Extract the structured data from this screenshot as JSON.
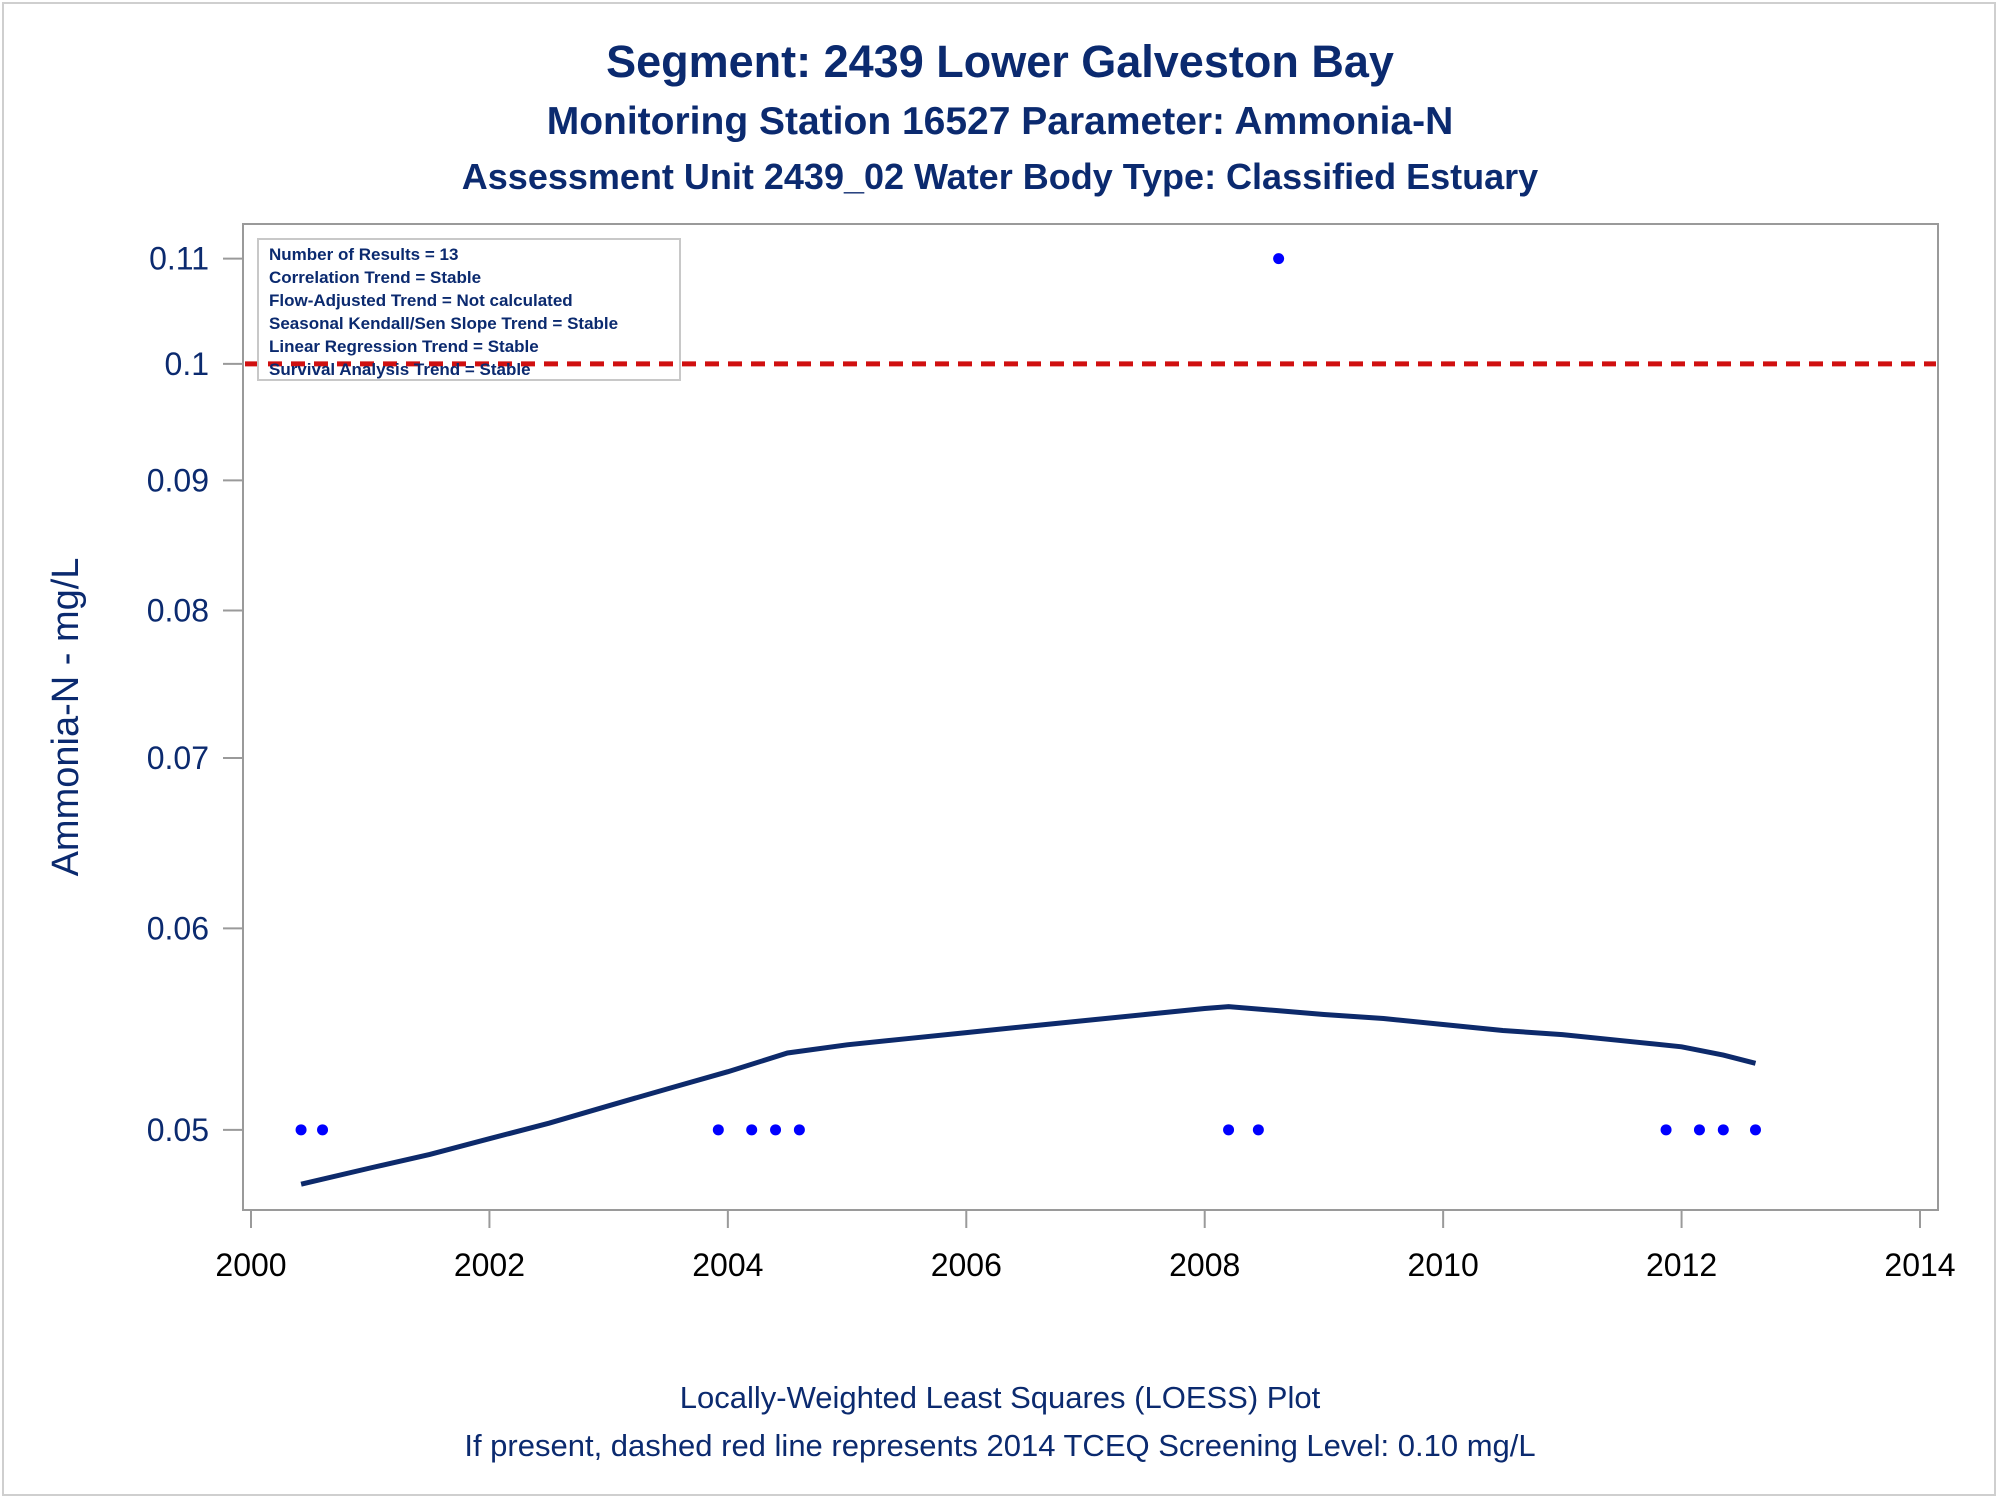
{
  "titles": {
    "line1": "Segment: 2439  Lower Galveston Bay",
    "line2": "Monitoring Station 16527 Parameter: Ammonia-N",
    "line3": "Assessment Unit 2439_02   Water Body Type: Classified Estuary"
  },
  "footnotes": {
    "line1": "Locally-Weighted Least Squares (LOESS) Plot",
    "line2": "If present, dashed red line represents 2014 TCEQ Screening Level: 0.10 mg/L"
  },
  "colors": {
    "text": "#0b2a6f",
    "points": "#0000ff",
    "loess": "#0d2a6b",
    "screening": "#d01010",
    "axis": "#9a9a9a"
  },
  "chart_data": {
    "type": "scatter",
    "ylabel": "Ammonia-N - mg/L",
    "xlabel": "",
    "y_scale": "log",
    "xlim": [
      2000,
      2014
    ],
    "ylim": [
      0.0465,
      0.1135
    ],
    "x_ticks": [
      2000,
      2002,
      2004,
      2006,
      2008,
      2010,
      2012,
      2014
    ],
    "y_ticks": [
      0.05,
      0.06,
      0.07,
      0.08,
      0.09,
      0.1,
      0.11
    ],
    "y_tick_labels": [
      "0.05",
      "0.06",
      "0.07",
      "0.08",
      "0.09",
      "0.1",
      "0.11"
    ],
    "grid": false,
    "legend_placement": "top-left",
    "stats": [
      "Number of Results = 13",
      "Correlation Trend = Stable",
      "Flow-Adjusted Trend = Not calculated",
      "Seasonal Kendall/Sen Slope Trend = Stable",
      "Linear Regression Trend = Stable",
      "Survival Analysis Trend = Stable"
    ],
    "screening_level": 0.1,
    "points": [
      {
        "x": 2000.42,
        "y": 0.05
      },
      {
        "x": 2000.6,
        "y": 0.05
      },
      {
        "x": 2003.92,
        "y": 0.05
      },
      {
        "x": 2004.2,
        "y": 0.05
      },
      {
        "x": 2004.4,
        "y": 0.05
      },
      {
        "x": 2004.6,
        "y": 0.05
      },
      {
        "x": 2008.2,
        "y": 0.05
      },
      {
        "x": 2008.45,
        "y": 0.05
      },
      {
        "x": 2008.62,
        "y": 0.11
      },
      {
        "x": 2011.87,
        "y": 0.05
      },
      {
        "x": 2012.15,
        "y": 0.05
      },
      {
        "x": 2012.35,
        "y": 0.05
      },
      {
        "x": 2012.62,
        "y": 0.05
      }
    ],
    "loess": [
      {
        "x": 2000.42,
        "y": 0.0476
      },
      {
        "x": 2001.0,
        "y": 0.0483
      },
      {
        "x": 2001.5,
        "y": 0.0489
      },
      {
        "x": 2002.0,
        "y": 0.0496
      },
      {
        "x": 2002.5,
        "y": 0.0503
      },
      {
        "x": 2003.0,
        "y": 0.0511
      },
      {
        "x": 2003.5,
        "y": 0.0519
      },
      {
        "x": 2004.0,
        "y": 0.0527
      },
      {
        "x": 2004.5,
        "y": 0.0536
      },
      {
        "x": 2005.0,
        "y": 0.054
      },
      {
        "x": 2005.5,
        "y": 0.0543
      },
      {
        "x": 2006.0,
        "y": 0.0546
      },
      {
        "x": 2006.5,
        "y": 0.0549
      },
      {
        "x": 2007.0,
        "y": 0.0552
      },
      {
        "x": 2007.5,
        "y": 0.0555
      },
      {
        "x": 2008.0,
        "y": 0.0558
      },
      {
        "x": 2008.2,
        "y": 0.0559
      },
      {
        "x": 2008.6,
        "y": 0.0557
      },
      {
        "x": 2009.0,
        "y": 0.0555
      },
      {
        "x": 2009.5,
        "y": 0.0553
      },
      {
        "x": 2010.0,
        "y": 0.055
      },
      {
        "x": 2010.5,
        "y": 0.0547
      },
      {
        "x": 2011.0,
        "y": 0.0545
      },
      {
        "x": 2011.5,
        "y": 0.0542
      },
      {
        "x": 2012.0,
        "y": 0.0539
      },
      {
        "x": 2012.35,
        "y": 0.0535
      },
      {
        "x": 2012.62,
        "y": 0.0531
      }
    ]
  }
}
